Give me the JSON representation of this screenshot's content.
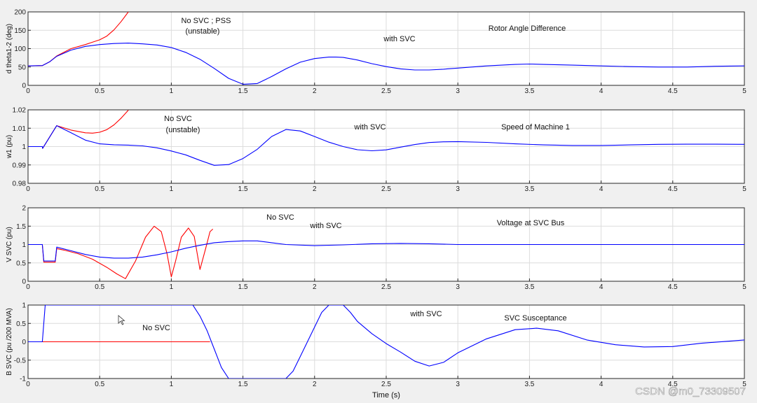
{
  "figure": {
    "xlabel": "Time (s)",
    "watermark": "CSDN @m0_73309507",
    "series_colors": {
      "no_svc": "#ff0000",
      "with_svc": "#0000ff"
    },
    "cursor_icon": "pointer-arrow-icon"
  },
  "chart_data": [
    {
      "type": "line",
      "title": "Rotor Angle Difference",
      "ylabel": "d theta1-2 (deg)",
      "xlim": [
        0,
        5
      ],
      "ylim": [
        0,
        200
      ],
      "xticks": [
        "0",
        "0.5",
        "1",
        "1.5",
        "2",
        "2.5",
        "3",
        "3.5",
        "4",
        "4.5",
        "5"
      ],
      "yticks": [
        "0",
        "50",
        "100",
        "150",
        "200"
      ],
      "grid": true,
      "annotations": [
        "No SVC ;  PSS",
        "(unstable)",
        "with SVC",
        "Rotor Angle Difference"
      ],
      "series": [
        {
          "key": "no_svc",
          "color": "#ff0000",
          "x": [
            0,
            0.1,
            0.15,
            0.2,
            0.3,
            0.4,
            0.5,
            0.55,
            0.6,
            0.65,
            0.7
          ],
          "y": [
            53,
            54,
            64,
            80,
            100,
            111,
            124,
            134,
            151,
            174,
            200
          ]
        },
        {
          "key": "with_svc",
          "color": "#0000ff",
          "x": [
            0,
            0.1,
            0.15,
            0.2,
            0.3,
            0.4,
            0.5,
            0.6,
            0.7,
            0.8,
            0.9,
            1,
            1.1,
            1.2,
            1.3,
            1.4,
            1.5,
            1.6,
            1.7,
            1.8,
            1.9,
            2,
            2.1,
            2.15,
            2.2,
            2.3,
            2.4,
            2.5,
            2.6,
            2.7,
            2.8,
            2.9,
            3,
            3.2,
            3.4,
            3.5,
            3.6,
            3.8,
            4,
            4.2,
            4.4,
            4.6,
            4.8,
            5
          ],
          "y": [
            53,
            54,
            64,
            79,
            96,
            106,
            111,
            114,
            115,
            113,
            110,
            103,
            90,
            71,
            46,
            19,
            3,
            5,
            24,
            45,
            63,
            73,
            77,
            77,
            76,
            69,
            59,
            51,
            45,
            42,
            42,
            44,
            47,
            53,
            57,
            58,
            57,
            55,
            53,
            51,
            50,
            50,
            52,
            53
          ]
        }
      ]
    },
    {
      "type": "line",
      "title": "Speed of Machine 1",
      "ylabel": "w1 (pu)",
      "xlim": [
        0,
        5
      ],
      "ylim": [
        0.98,
        1.02
      ],
      "xticks": [
        "0",
        "0.5",
        "1",
        "1.5",
        "2",
        "2.5",
        "3",
        "3.5",
        "4",
        "4.5",
        "5"
      ],
      "yticks": [
        "0.98",
        "0.99",
        "1",
        "1.01",
        "1.02"
      ],
      "grid": true,
      "annotations": [
        "No SVC",
        "(unstable)",
        "with SVC",
        "Speed of Machine 1"
      ],
      "series": [
        {
          "key": "no_svc",
          "color": "#ff0000",
          "x": [
            0,
            0.1,
            0.102,
            0.2,
            0.3,
            0.4,
            0.45,
            0.5,
            0.55,
            0.6,
            0.65,
            0.7
          ],
          "y": [
            1.0,
            1.0,
            0.999,
            1.0114,
            1.009,
            1.0075,
            1.0073,
            1.0078,
            1.0092,
            1.0118,
            1.0155,
            1.0198
          ]
        },
        {
          "key": "with_svc",
          "color": "#0000ff",
          "x": [
            0,
            0.1,
            0.102,
            0.2,
            0.3,
            0.4,
            0.5,
            0.6,
            0.7,
            0.8,
            0.9,
            1,
            1.1,
            1.2,
            1.3,
            1.4,
            1.5,
            1.6,
            1.7,
            1.8,
            1.9,
            2,
            2.1,
            2.2,
            2.3,
            2.4,
            2.5,
            2.6,
            2.7,
            2.8,
            2.9,
            3,
            3.2,
            3.4,
            3.6,
            3.8,
            4,
            4.2,
            4.4,
            4.6,
            4.8,
            5
          ],
          "y": [
            1.0,
            1.0,
            0.999,
            1.0114,
            1.0075,
            1.0035,
            1.0015,
            1.001,
            1.0008,
            1.0004,
            0.9993,
            0.9976,
            0.9955,
            0.9925,
            0.9898,
            0.9902,
            0.9935,
            0.9985,
            1.0055,
            1.0093,
            1.0085,
            1.0055,
            1.0024,
            1.0,
            0.9983,
            0.9977,
            0.9982,
            0.9997,
            1.0011,
            1.0022,
            1.0026,
            1.0027,
            1.0023,
            1.0015,
            1.0009,
            1.0006,
            1.0006,
            1.0009,
            1.0012,
            1.0013,
            1.0013,
            1.0012
          ]
        }
      ]
    },
    {
      "type": "line",
      "title": "Voltage at  SVC Bus",
      "ylabel": "V SVC (pu)",
      "xlim": [
        0,
        5
      ],
      "ylim": [
        0,
        2
      ],
      "xticks": [
        "0",
        "0.5",
        "1",
        "1.5",
        "2",
        "2.5",
        "3",
        "3.5",
        "4",
        "4.5",
        "5"
      ],
      "yticks": [
        "0",
        "0.5",
        "1",
        "1.5",
        "2"
      ],
      "grid": true,
      "annotations": [
        "No SVC",
        "with SVC",
        "Voltage at  SVC Bus"
      ],
      "series": [
        {
          "key": "no_svc",
          "color": "#ff0000",
          "x": [
            0,
            0.1,
            0.11,
            0.19,
            0.2,
            0.25,
            0.35,
            0.45,
            0.55,
            0.62,
            0.68,
            0.75,
            0.82,
            0.88,
            0.93,
            0.97,
            1.0,
            1.03,
            1.07,
            1.12,
            1.16,
            1.2,
            1.24,
            1.27,
            1.29
          ],
          "y": [
            1.0,
            1.0,
            0.52,
            0.52,
            0.89,
            0.85,
            0.75,
            0.6,
            0.38,
            0.2,
            0.07,
            0.55,
            1.2,
            1.5,
            1.35,
            0.75,
            0.12,
            0.55,
            1.2,
            1.45,
            1.22,
            0.32,
            0.9,
            1.35,
            1.42
          ]
        },
        {
          "key": "with_svc",
          "color": "#0000ff",
          "x": [
            0,
            0.1,
            0.11,
            0.19,
            0.2,
            0.3,
            0.4,
            0.5,
            0.6,
            0.7,
            0.8,
            0.9,
            1,
            1.1,
            1.2,
            1.3,
            1.4,
            1.5,
            1.6,
            1.7,
            1.8,
            2,
            2.2,
            2.4,
            2.6,
            2.8,
            3,
            3.5,
            4,
            4.5,
            5
          ],
          "y": [
            1.0,
            1.0,
            0.55,
            0.55,
            0.93,
            0.83,
            0.73,
            0.66,
            0.63,
            0.63,
            0.66,
            0.72,
            0.8,
            0.9,
            0.98,
            1.05,
            1.08,
            1.1,
            1.1,
            1.05,
            1.0,
            0.97,
            0.99,
            1.02,
            1.03,
            1.02,
            1.0,
            1.0,
            1.0,
            1.0,
            1.0
          ]
        }
      ]
    },
    {
      "type": "line",
      "title": "SVC Susceptance",
      "ylabel": "B SVC (pu /200 MVA)",
      "xlim": [
        0,
        5
      ],
      "ylim": [
        -1,
        1
      ],
      "xticks": [
        "0",
        "0.5",
        "1",
        "1.5",
        "2",
        "2.5",
        "3",
        "3.5",
        "4",
        "4.5",
        "5"
      ],
      "yticks": [
        "-1",
        "-0.5",
        "0",
        "0.5",
        "1"
      ],
      "grid": true,
      "annotations": [
        "No SVC",
        "with SVC",
        "SVC Susceptance"
      ],
      "series": [
        {
          "key": "no_svc",
          "color": "#ff0000",
          "x": [
            0,
            1.27
          ],
          "y": [
            0,
            0
          ]
        },
        {
          "key": "with_svc",
          "color": "#0000ff",
          "x": [
            0,
            0.1,
            0.12,
            1.15,
            1.2,
            1.25,
            1.3,
            1.35,
            1.4,
            1.8,
            1.85,
            1.9,
            2.0,
            2.05,
            2.1,
            2.2,
            2.25,
            2.3,
            2.4,
            2.5,
            2.6,
            2.7,
            2.8,
            2.9,
            3.0,
            3.2,
            3.4,
            3.55,
            3.7,
            3.9,
            4.1,
            4.3,
            4.5,
            4.7,
            5
          ],
          "y": [
            0,
            0,
            1,
            1,
            0.7,
            0.3,
            -0.2,
            -0.7,
            -1,
            -1,
            -0.8,
            -0.4,
            0.4,
            0.8,
            1,
            1,
            0.8,
            0.55,
            0.22,
            -0.05,
            -0.28,
            -0.53,
            -0.66,
            -0.56,
            -0.3,
            0.08,
            0.33,
            0.37,
            0.3,
            0.05,
            -0.08,
            -0.14,
            -0.13,
            -0.04,
            0.05
          ]
        }
      ]
    }
  ]
}
